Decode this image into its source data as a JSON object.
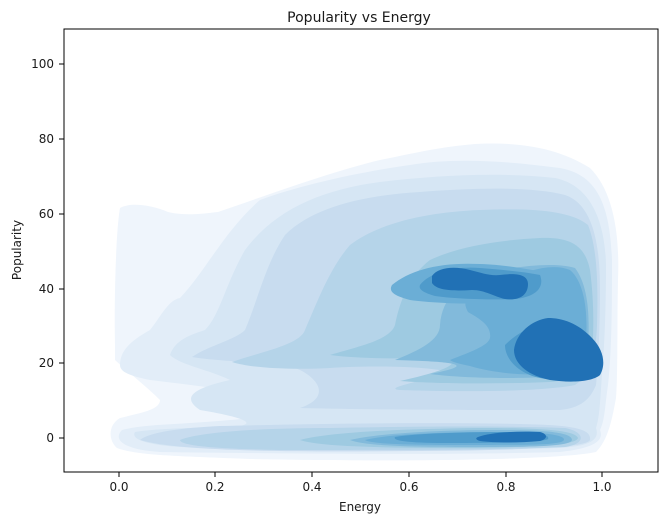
{
  "chart_data": {
    "type": "kde-contour",
    "title": "Popularity vs Energy",
    "xlabel": "Energy",
    "ylabel": "Popularity",
    "xlim": [
      -0.13,
      1.12
    ],
    "ylim": [
      -9,
      109
    ],
    "x_ticks": [
      "0.0",
      "0.2",
      "0.4",
      "0.6",
      "0.8",
      "1.0"
    ],
    "y_ticks": [
      "0",
      "20",
      "40",
      "60",
      "80",
      "100"
    ],
    "grid": false,
    "colormap": [
      "#eff5fc",
      "#e2edf8",
      "#d6e6f4",
      "#c8dcef",
      "#b5d4e9",
      "#9ecae1",
      "#82badb",
      "#6baed6",
      "#4f9bcb",
      "#2171b5"
    ],
    "density_peaks": [
      {
        "x": 0.92,
        "y": 22
      },
      {
        "x": 0.7,
        "y": 42
      },
      {
        "x": 0.82,
        "y": 40
      },
      {
        "x": 0.78,
        "y": 0.5
      },
      {
        "x": 0.65,
        "y": 0.5
      },
      {
        "x": 0.5,
        "y": 22
      },
      {
        "x": 0.3,
        "y": 22
      },
      {
        "x": 0.15,
        "y": 0.5
      },
      {
        "x": 0.02,
        "y": 52
      }
    ]
  }
}
